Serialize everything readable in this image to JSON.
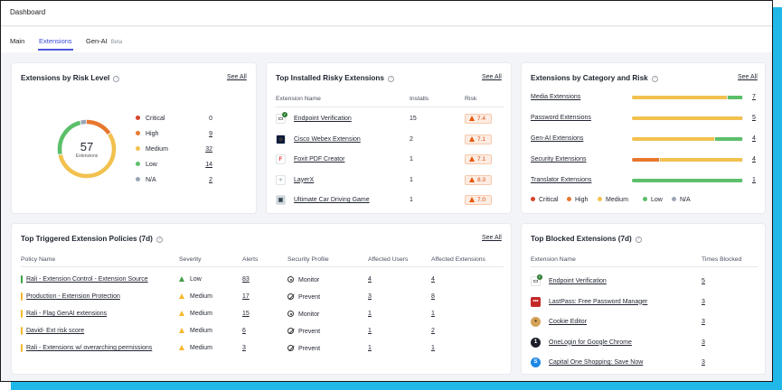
{
  "header": {
    "title": "Dashboard"
  },
  "tabs": [
    {
      "label": "Main"
    },
    {
      "label": "Extensions"
    },
    {
      "label": "Gen-AI",
      "badge": "Beta"
    }
  ],
  "colors": {
    "critical": "#d7442a",
    "high": "#e8772e",
    "medium": "#f2c14e",
    "low": "#5cbf6a",
    "na": "#9aa5b5",
    "accent": "#3b4bd8"
  },
  "risk_level": {
    "title": "Extensions by Risk Level",
    "see_all": "See All",
    "total": "57",
    "total_label": "Extensions",
    "items": [
      {
        "label": "Critical",
        "count": "0",
        "value": 0,
        "color": "#d7442a"
      },
      {
        "label": "High",
        "count": "9",
        "value": 9,
        "color": "#e8772e"
      },
      {
        "label": "Medium",
        "count": "32",
        "value": 32,
        "color": "#f2c14e"
      },
      {
        "label": "Low",
        "count": "14",
        "value": 14,
        "color": "#5cbf6a"
      },
      {
        "label": "N/A",
        "count": "2",
        "value": 2,
        "color": "#9aa5b5"
      }
    ]
  },
  "risky": {
    "title": "Top Installed Risky Extensions",
    "see_all": "See All",
    "headers": {
      "name": "Extension Name",
      "installs": "Installs",
      "risk": "Risk"
    },
    "rows": [
      {
        "name": "Endpoint Verification",
        "installs": "15",
        "risk": "7.4",
        "icon": "laptop-check-icon"
      },
      {
        "name": "Cisco Webex Extension",
        "installs": "2",
        "risk": "7.1",
        "icon": "webex-icon"
      },
      {
        "name": "Foxit PDF Creator",
        "installs": "1",
        "risk": "7.1",
        "icon": "foxit-icon"
      },
      {
        "name": "LayerX",
        "installs": "1",
        "risk": "8.3",
        "icon": "puzzle-icon"
      },
      {
        "name": "Ultimate Car Driving Game",
        "installs": "1",
        "risk": "7.0",
        "icon": "car-game-icon"
      }
    ]
  },
  "category": {
    "title": "Extensions by Category and Risk",
    "see_all": "See All",
    "rows": [
      {
        "name": "Media Extensions",
        "count": "7",
        "segments": [
          {
            "level": "medium",
            "fraction": 0.86
          },
          {
            "level": "low",
            "fraction": 0.14
          }
        ]
      },
      {
        "name": "Password Extensions",
        "count": "5",
        "segments": [
          {
            "level": "medium",
            "fraction": 1.0
          }
        ]
      },
      {
        "name": "Gen-AI Extensions",
        "count": "4",
        "segments": [
          {
            "level": "medium",
            "fraction": 0.75
          },
          {
            "level": "low",
            "fraction": 0.25
          }
        ]
      },
      {
        "name": "Security Extensions",
        "count": "4",
        "segments": [
          {
            "level": "high",
            "fraction": 0.25
          },
          {
            "level": "medium",
            "fraction": 0.75
          }
        ]
      },
      {
        "name": "Translator Extensions",
        "count": "1",
        "segments": [
          {
            "level": "low",
            "fraction": 1.0
          }
        ]
      }
    ],
    "legend": [
      "Critical",
      "High",
      "Medium",
      "Low",
      "N/A"
    ]
  },
  "policies": {
    "title": "Top Triggered Extension Policies (7d)",
    "see_all": "See All",
    "headers": {
      "name": "Policy Name",
      "severity": "Severity",
      "alerts": "Alerts",
      "profile": "Security Profile",
      "users": "Affected Users",
      "extensions": "Affected Extensions"
    },
    "rows": [
      {
        "name": "Rali - Extension Control - Extension Source",
        "severity": "Low",
        "sev_level": "low",
        "alerts": "83",
        "profile": "Monitor",
        "profile_icon": "monitor",
        "users": "4",
        "extensions": "4"
      },
      {
        "name": "Production - Extension Protection",
        "severity": "Medium",
        "sev_level": "medium",
        "alerts": "17",
        "profile": "Prevent",
        "profile_icon": "prevent",
        "users": "3",
        "extensions": "8"
      },
      {
        "name": "Rali - Flag GenAI extensions",
        "severity": "Medium",
        "sev_level": "medium",
        "alerts": "15",
        "profile": "Monitor",
        "profile_icon": "monitor",
        "users": "1",
        "extensions": "1"
      },
      {
        "name": "David- Ext risk score",
        "severity": "Medium",
        "sev_level": "medium",
        "alerts": "6",
        "profile": "Prevent",
        "profile_icon": "prevent",
        "users": "1",
        "extensions": "2"
      },
      {
        "name": "Rali - Extensions w/ overarching permissions",
        "severity": "Medium",
        "sev_level": "medium",
        "alerts": "3",
        "profile": "Prevent",
        "profile_icon": "prevent",
        "users": "1",
        "extensions": "1"
      }
    ]
  },
  "blocked": {
    "title": "Top Blocked Extensions (7d)",
    "headers": {
      "name": "Extension Name",
      "times": "Times Blocked"
    },
    "rows": [
      {
        "name": "Endpoint Verification",
        "times": "5",
        "icon": "laptop-check-icon"
      },
      {
        "name": "LastPass: Free Password Manager",
        "times": "3",
        "icon": "lastpass-icon"
      },
      {
        "name": "Cookie Editor",
        "times": "3",
        "icon": "cookie-icon"
      },
      {
        "name": "OneLogin for Google Chrome",
        "times": "3",
        "icon": "onelogin-icon"
      },
      {
        "name": "Capital One Shopping: Save Now",
        "times": "3",
        "icon": "capital-one-icon"
      }
    ]
  }
}
